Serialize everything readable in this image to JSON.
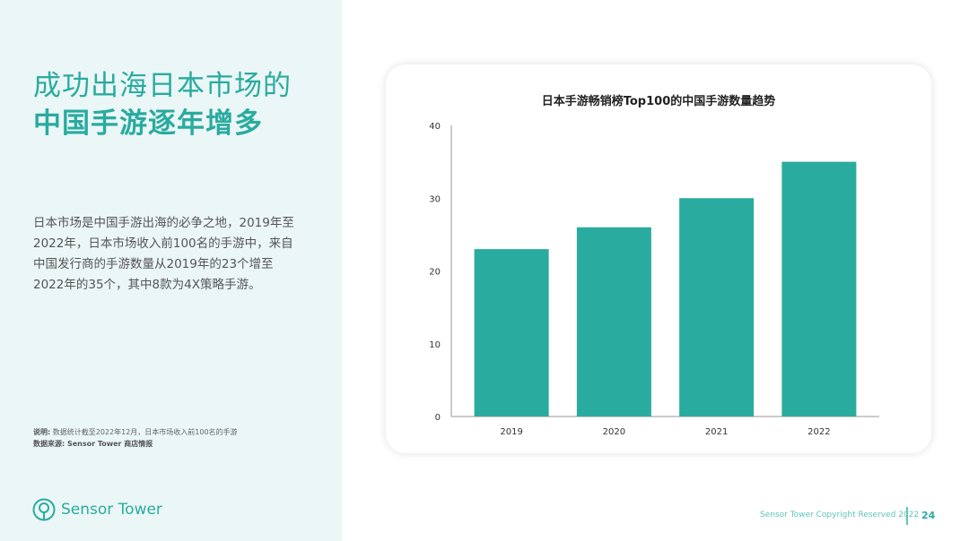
{
  "left": {
    "title_line1": "成功出海日本市场的",
    "title_line2": "中国手游逐年增多",
    "description": "日本市场是中国手游出海的必争之地，2019年至2022年，日本市场收入前100名的手游中，来自中国发行商的手游数量从2019年的23个增至2022年的35个，其中8款为4X策略手游。",
    "note_label": "说明:",
    "note_text": "数据统计截至2022年12月，日本市场收入前100名的手游",
    "source": "数据来源: Sensor Tower 商店情报",
    "logo_text": "Sensor Tower"
  },
  "footer": {
    "copyright": "Sensor Tower Copyright Reserved 2022",
    "page": "24"
  },
  "colors": {
    "accent": "#2aab9f",
    "bar": "#2aab9f",
    "panel": "#ebf6f7"
  },
  "chart_data": {
    "type": "bar",
    "title": "日本手游畅销榜Top100的中国手游数量趋势",
    "categories": [
      "2019",
      "2020",
      "2021",
      "2022"
    ],
    "values": [
      23,
      26,
      30,
      35
    ],
    "ylim": [
      0,
      40
    ],
    "yticks": [
      0,
      10,
      20,
      30,
      40
    ],
    "xlabel": "",
    "ylabel": "",
    "grid": false,
    "legend": "none"
  }
}
